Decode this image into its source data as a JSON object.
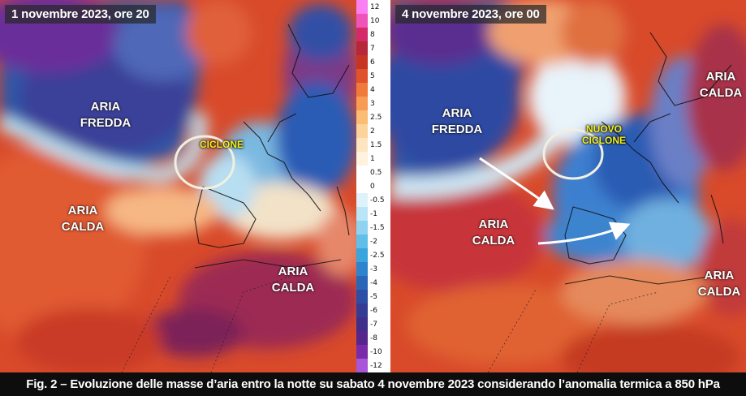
{
  "left_panel": {
    "title": "1 novembre 2023, ore 20",
    "labels": {
      "cold": "ARIA\nFREDDA",
      "warm_west": "ARIA\nCALDA",
      "warm_south": "ARIA\nCALDA",
      "cyclone": "CICLONE"
    }
  },
  "right_panel": {
    "title": "4 novembre 2023, ore 00",
    "labels": {
      "cold": "ARIA\nFREDDA",
      "warm_west": "ARIA\nCALDA",
      "warm_east": "ARIA\nCALDA",
      "warm_southeast": "ARIA\nCALDA",
      "cyclone": "NUOVO\nCICLONE"
    }
  },
  "legend": {
    "ticks": [
      "12",
      "10",
      "8",
      "7",
      "6",
      "5",
      "4",
      "3",
      "2.5",
      "2",
      "1.5",
      "1",
      "0.5",
      "0",
      "-0.5",
      "-1",
      "-1.5",
      "-2",
      "-2.5",
      "-3",
      "-4",
      "-5",
      "-6",
      "-7",
      "-8",
      "-10",
      "-12"
    ],
    "colors": [
      "#fa7ff0",
      "#f054b8",
      "#d42a6a",
      "#b5283a",
      "#c63524",
      "#e0522c",
      "#f07a3c",
      "#f79b55",
      "#fbbc74",
      "#fcd39a",
      "#fde5bf",
      "#fff2df",
      "#ffffff",
      "#ffffff",
      "#dff2fb",
      "#b9e6f6",
      "#8fd3f0",
      "#5fbfe8",
      "#3aa4dc",
      "#2e84cc",
      "#2a66b8",
      "#2c4ea5",
      "#353c94",
      "#3f2f8a",
      "#55278c",
      "#7a2ca8",
      "#a855d8"
    ],
    "ticks_colors_note": "vertical color scale"
  },
  "caption": "Fig. 2 – Evoluzione delle masse d’aria entro la notte su sabato 4 novembre 2023 considerando l’anomalia termica a 850 hPa"
}
